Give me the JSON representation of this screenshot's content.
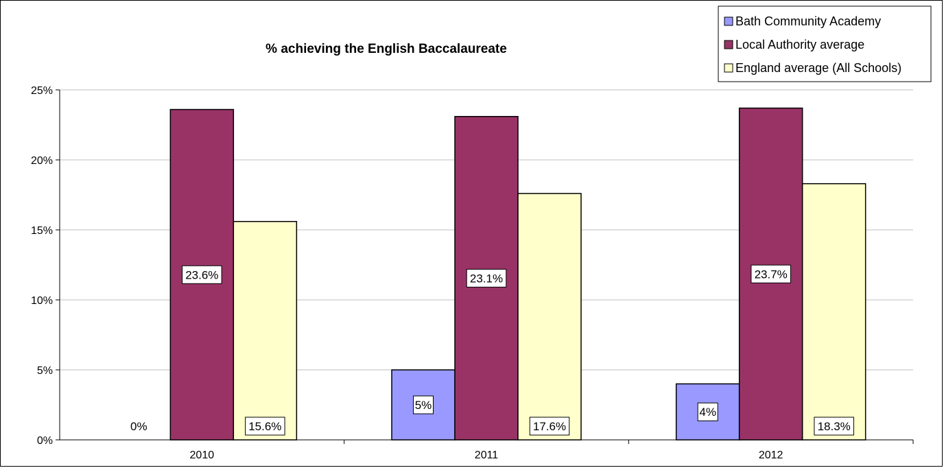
{
  "chart_data": {
    "type": "bar",
    "title": "% achieving the English Baccalaureate",
    "categories": [
      "2010",
      "2011",
      "2012"
    ],
    "series": [
      {
        "name": "Bath Community Academy",
        "values": [
          0,
          5,
          4
        ],
        "color": "#9999ff",
        "labels": [
          "0%",
          "5%",
          "4%"
        ]
      },
      {
        "name": "Local Authority average",
        "values": [
          23.6,
          23.1,
          23.7
        ],
        "color": "#993366",
        "labels": [
          "23.6%",
          "23.1%",
          "23.7%"
        ]
      },
      {
        "name": "England average (All Schools)",
        "values": [
          15.6,
          17.6,
          18.3
        ],
        "color": "#ffffcc",
        "labels": [
          "15.6%",
          "17.6%",
          "18.3%"
        ]
      }
    ],
    "ylim": [
      0,
      25
    ],
    "yticks": [
      0,
      5,
      10,
      15,
      20,
      25
    ],
    "ytick_labels": [
      "0%",
      "5%",
      "10%",
      "15%",
      "20%",
      "25%"
    ],
    "xlabel": "",
    "ylabel": "",
    "grid": true,
    "legend_position": "top-right"
  }
}
